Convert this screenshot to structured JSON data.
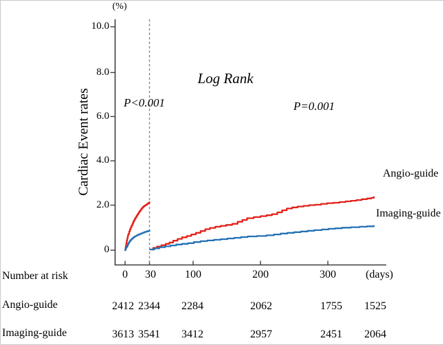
{
  "chart_data": {
    "type": "line",
    "subtype": "landmark-cumulative-incidence-step-curves",
    "ylabel": "Cardiac Event rates",
    "y_unit_label": "(%)",
    "x_unit_label": "(days)",
    "ylim": [
      0,
      10
    ],
    "grid": false,
    "y_ticks": [
      {
        "v": 0,
        "label": "0"
      },
      {
        "v": 2,
        "label": "2.0"
      },
      {
        "v": 4,
        "label": "4.0"
      },
      {
        "v": 6,
        "label": "6.0"
      },
      {
        "v": 8,
        "label": "8.0"
      },
      {
        "v": 10,
        "label": "10.0"
      }
    ],
    "x_ticks": [
      {
        "v": 0,
        "label": "0"
      },
      {
        "v": 30,
        "label": "30"
      },
      {
        "v": 100,
        "label": "100"
      },
      {
        "v": 200,
        "label": "200"
      },
      {
        "v": 300,
        "label": "300"
      }
    ],
    "landmark_day": 30,
    "landmark_line_color": "#8a8a8a",
    "annotations": {
      "log_rank": "Log Rank",
      "p_left": "P<0.001",
      "p_right": "P=0.001"
    },
    "series": [
      {
        "name": "Angio-guide",
        "color": "#e32019",
        "pre_landmark": {
          "days": [
            0,
            0.5,
            1,
            1.5,
            2,
            2.5,
            3,
            3.5,
            4,
            5,
            6,
            7,
            8,
            9,
            10,
            11,
            12,
            13,
            14,
            15,
            16,
            17,
            18,
            19,
            20,
            21,
            22,
            23,
            24,
            25,
            26,
            27,
            28,
            29,
            30
          ],
          "pct": [
            0,
            0.12,
            0.22,
            0.32,
            0.42,
            0.5,
            0.58,
            0.65,
            0.72,
            0.83,
            0.93,
            1.02,
            1.1,
            1.18,
            1.26,
            1.33,
            1.4,
            1.46,
            1.52,
            1.58,
            1.63,
            1.69,
            1.74,
            1.79,
            1.84,
            1.88,
            1.92,
            1.95,
            1.98,
            2.0,
            2.02,
            2.05,
            2.08,
            2.11,
            2.13
          ]
        },
        "post_landmark": {
          "days": [
            31,
            36,
            42,
            49,
            56,
            62,
            68,
            75,
            82,
            90,
            97,
            104,
            111,
            118,
            125,
            133,
            141,
            149,
            158,
            166,
            173,
            180,
            190,
            200,
            209,
            217,
            225,
            232,
            239,
            247,
            255,
            264,
            272,
            281,
            290,
            299,
            308,
            317,
            326,
            334,
            342,
            350,
            358,
            364,
            368
          ],
          "pct": [
            0.03,
            0.1,
            0.16,
            0.22,
            0.28,
            0.34,
            0.42,
            0.5,
            0.57,
            0.63,
            0.7,
            0.77,
            0.85,
            0.93,
            0.99,
            1.04,
            1.08,
            1.12,
            1.17,
            1.26,
            1.34,
            1.42,
            1.47,
            1.51,
            1.55,
            1.6,
            1.68,
            1.77,
            1.85,
            1.9,
            1.94,
            1.97,
            2.0,
            2.02,
            2.06,
            2.09,
            2.11,
            2.14,
            2.17,
            2.2,
            2.23,
            2.27,
            2.3,
            2.33,
            2.37
          ]
        }
      },
      {
        "name": "Imaging-guide",
        "color": "#2271b5",
        "pre_landmark": {
          "days": [
            0,
            0.5,
            1,
            1.5,
            2,
            3,
            4,
            5,
            6,
            7,
            8,
            9,
            10,
            11,
            12,
            13,
            14,
            15,
            16,
            18,
            20,
            22,
            24,
            26,
            28,
            30
          ],
          "pct": [
            0,
            0.04,
            0.08,
            0.12,
            0.16,
            0.24,
            0.31,
            0.37,
            0.42,
            0.46,
            0.5,
            0.53,
            0.56,
            0.59,
            0.61,
            0.63,
            0.65,
            0.67,
            0.69,
            0.72,
            0.75,
            0.78,
            0.81,
            0.83,
            0.85,
            0.88
          ]
        },
        "post_landmark": {
          "days": [
            31,
            38,
            46,
            55,
            64,
            73,
            82,
            92,
            101,
            111,
            121,
            131,
            141,
            151,
            161,
            171,
            181,
            195,
            209,
            220,
            230,
            240,
            250,
            260,
            270,
            280,
            291,
            301,
            311,
            321,
            334,
            347,
            358,
            368
          ],
          "pct": [
            0.03,
            0.08,
            0.13,
            0.17,
            0.21,
            0.25,
            0.28,
            0.31,
            0.36,
            0.4,
            0.43,
            0.46,
            0.49,
            0.52,
            0.55,
            0.58,
            0.61,
            0.63,
            0.66,
            0.7,
            0.74,
            0.77,
            0.8,
            0.83,
            0.86,
            0.89,
            0.92,
            0.95,
            0.97,
            1.0,
            1.02,
            1.04,
            1.06,
            1.08
          ]
        }
      }
    ]
  },
  "risk_table": {
    "title": "Number at risk",
    "rows": [
      {
        "label": "Angio-guide",
        "values": [
          "2412",
          "2344",
          "2284",
          "2062",
          "1755",
          "1525"
        ]
      },
      {
        "label": "Imaging-guide",
        "values": [
          "3613",
          "3541",
          "3412",
          "2957",
          "2451",
          "2064"
        ]
      }
    ]
  }
}
